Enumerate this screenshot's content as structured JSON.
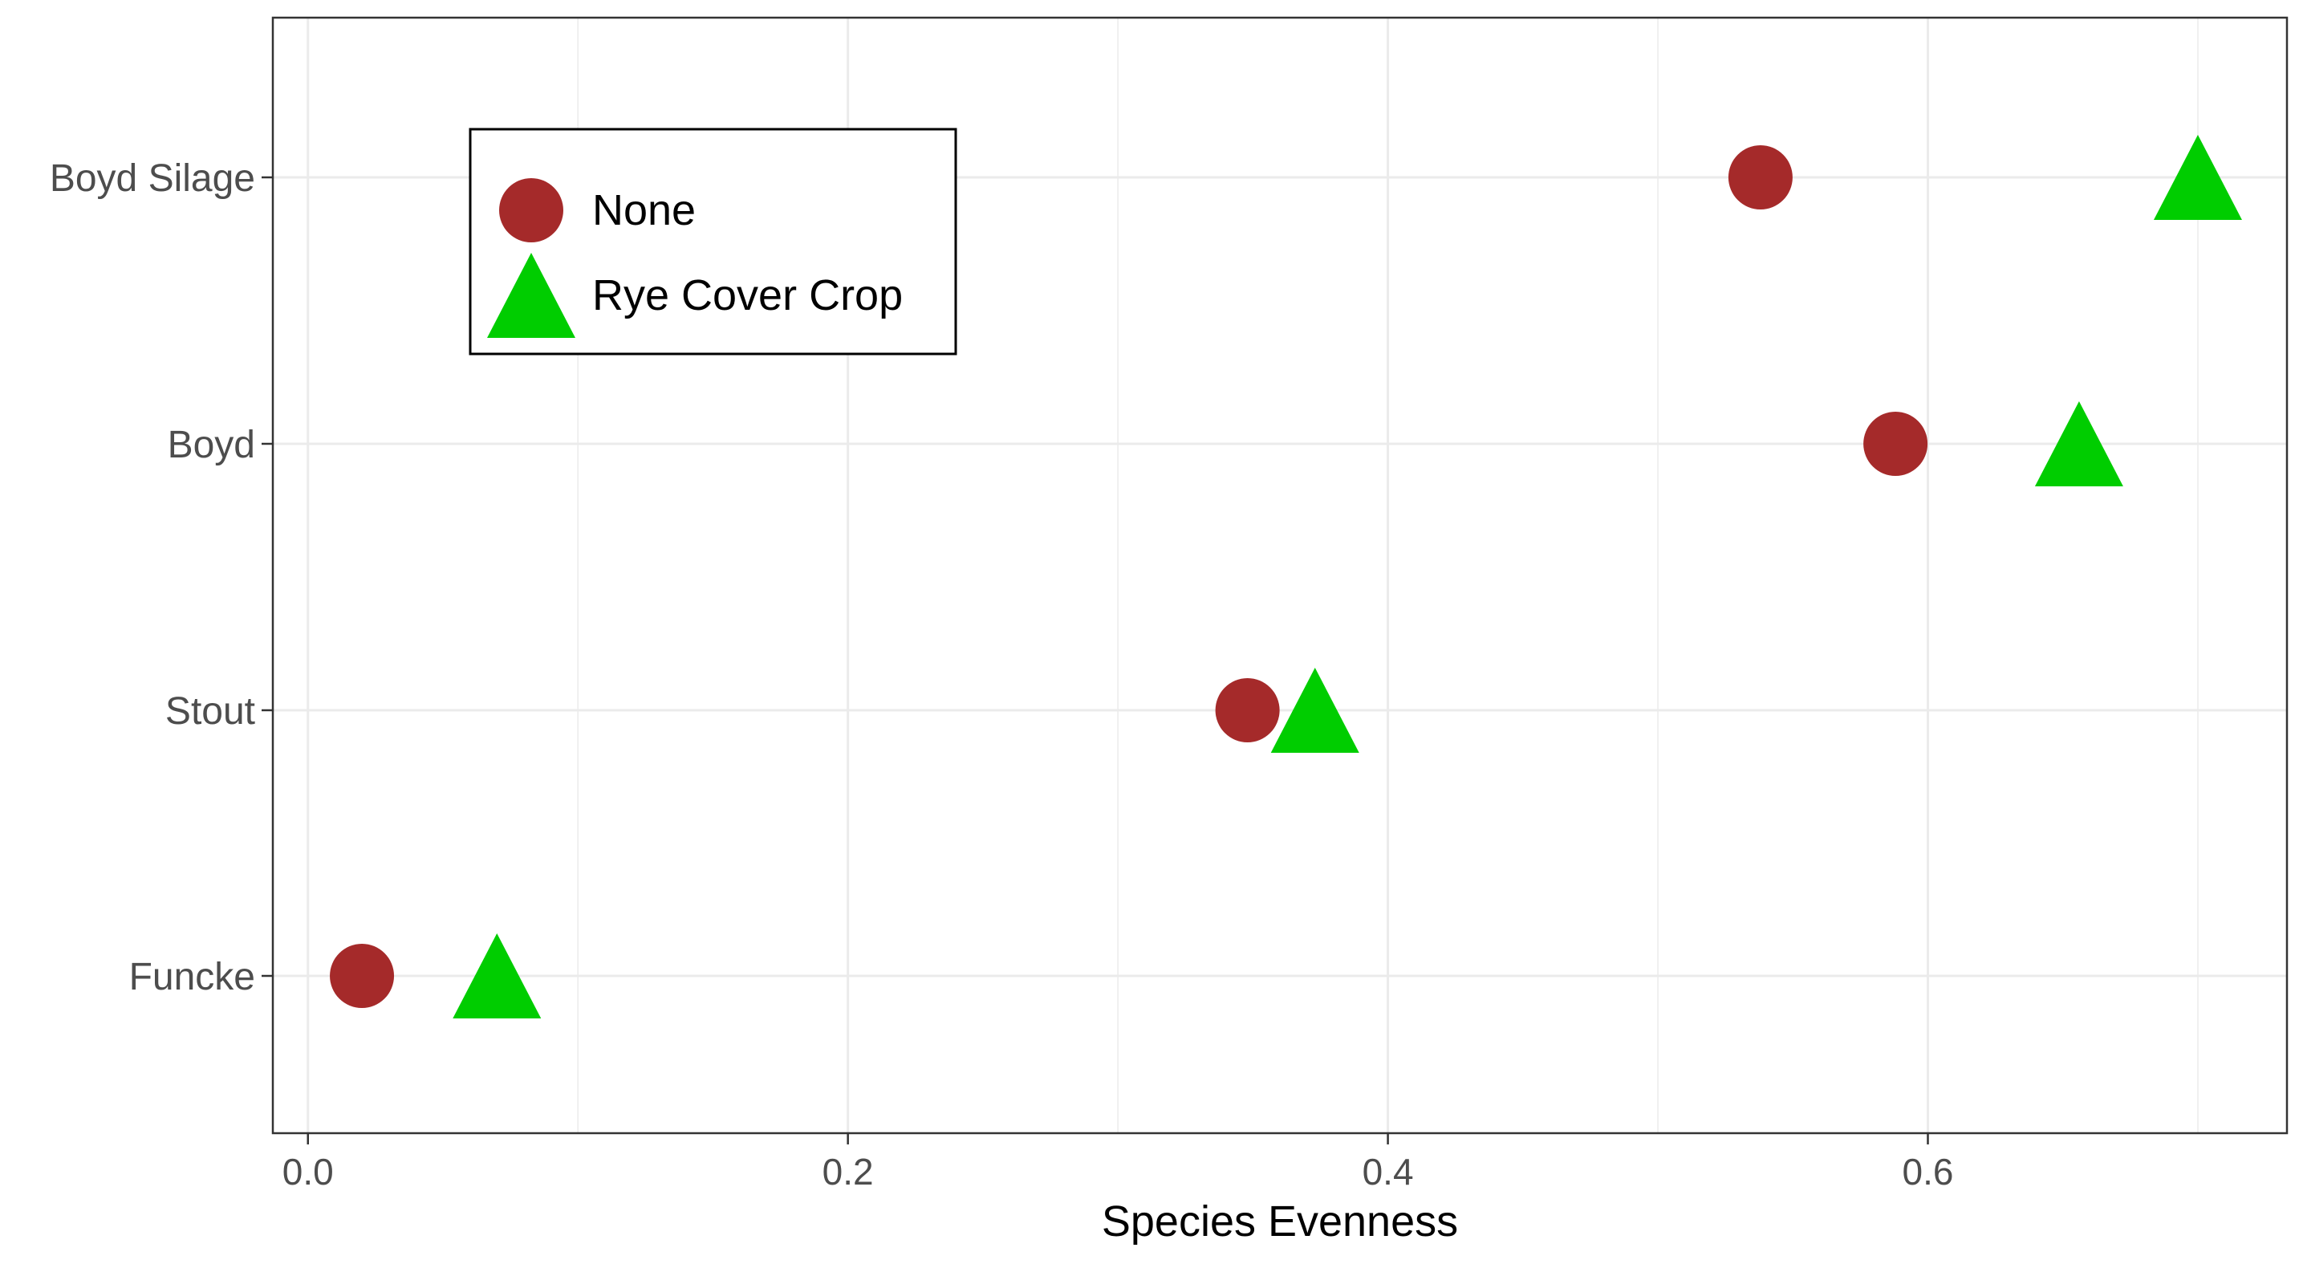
{
  "chart_data": {
    "type": "scatter",
    "title": "",
    "xlabel": "Species Evenness",
    "ylabel": "",
    "xlim": [
      -0.013,
      0.733
    ],
    "x_ticks": [
      0.0,
      0.2,
      0.4,
      0.6
    ],
    "x_tick_labels": [
      "0.0",
      "0.2",
      "0.4",
      "0.6"
    ],
    "categories": [
      "Funcke",
      "Stout",
      "Boyd",
      "Boyd Silage"
    ],
    "grid": true,
    "legend_position": "top-left",
    "series": [
      {
        "name": "None",
        "marker": "circle",
        "color": "#a52a2a",
        "values": [
          0.02,
          0.348,
          0.588,
          0.538
        ]
      },
      {
        "name": "Rye Cover Crop",
        "marker": "triangle",
        "color": "#00cd00",
        "values": [
          0.07,
          0.373,
          0.656,
          0.7
        ]
      }
    ]
  }
}
